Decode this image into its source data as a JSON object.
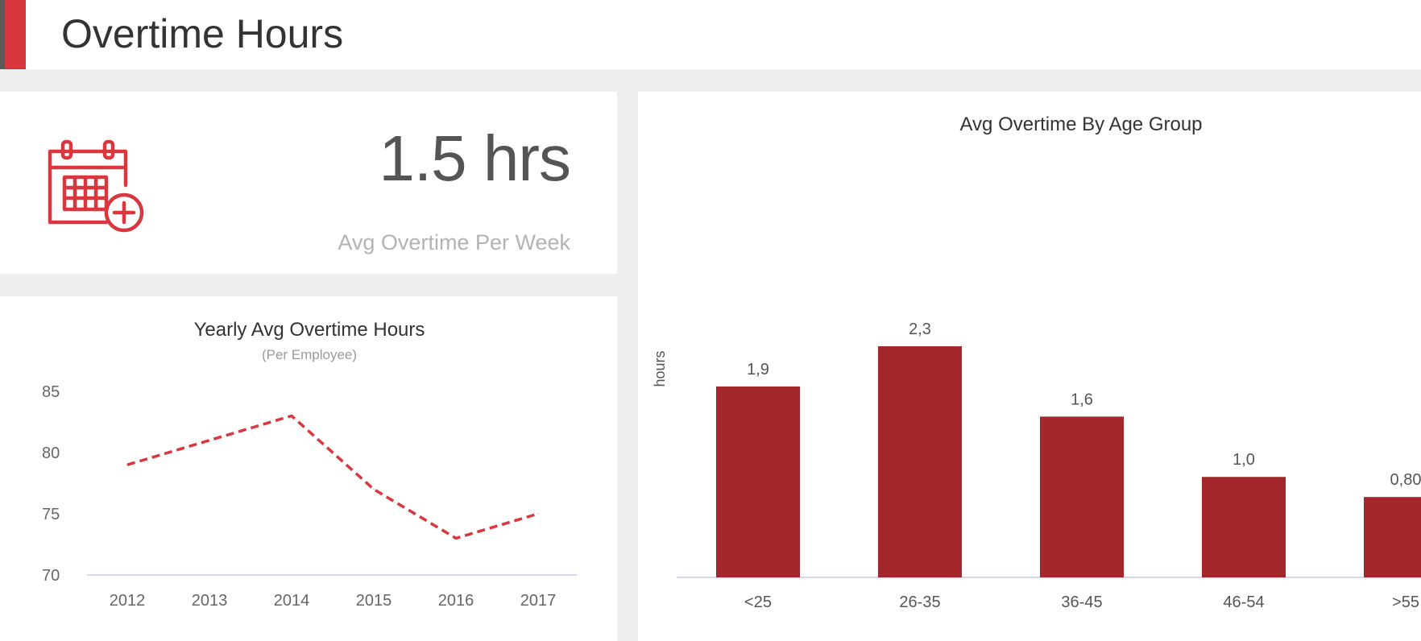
{
  "header": {
    "title": "Overtime Hours"
  },
  "kpi": {
    "value": "1.5 hrs",
    "label": "Avg Overtime Per Week",
    "icon": "calendar-add-icon"
  },
  "colors": {
    "accent": "#d9363e",
    "bar": "#a4282b",
    "line": "#d9363e",
    "axis": "#c7c9ea"
  },
  "chart_data": [
    {
      "type": "line",
      "title": "Yearly Avg Overtime Hours",
      "subtitle": "(Per Employee)",
      "x": [
        "2012",
        "2013",
        "2014",
        "2015",
        "2016",
        "2017"
      ],
      "series": [
        {
          "values": [
            79,
            81,
            83,
            77,
            73,
            75
          ]
        }
      ],
      "ylim": [
        70,
        85
      ],
      "yticks": [
        70,
        75,
        80,
        85
      ],
      "line_style": "dashed",
      "grid": false
    },
    {
      "type": "bar",
      "title": "Avg Overtime By Age Group",
      "ylabel": "hours",
      "categories": [
        "<25",
        "26-35",
        "36-45",
        "46-54",
        ">55"
      ],
      "values": [
        1.9,
        2.3,
        1.6,
        1.0,
        0.8
      ],
      "value_labels": [
        "1,9",
        "2,3",
        "1,6",
        "1,0",
        "0,80"
      ],
      "ylim": [
        0,
        2.3
      ],
      "grid": false
    }
  ]
}
